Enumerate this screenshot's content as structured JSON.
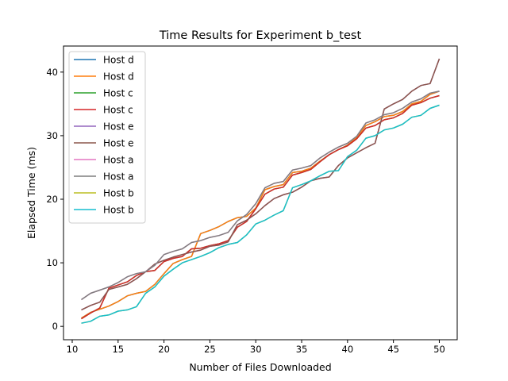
{
  "chart_data": {
    "type": "line",
    "title": "Time Results for Experiment b_test",
    "xlabel": "Number of Files Downloaded",
    "ylabel": "Elapsed Time (ms)",
    "xlim": [
      9.05,
      51.95
    ],
    "ylim": [
      -2.1,
      44.1
    ],
    "xticks": [
      10,
      15,
      20,
      25,
      30,
      35,
      40,
      45,
      50
    ],
    "yticks": [
      0,
      10,
      20,
      30,
      40
    ],
    "grid": false,
    "legend_position": "upper-left",
    "x": [
      11,
      12,
      13,
      14,
      15,
      16,
      17,
      18,
      19,
      20,
      21,
      22,
      23,
      24,
      25,
      26,
      27,
      28,
      29,
      30,
      31,
      32,
      33,
      34,
      35,
      36,
      37,
      38,
      39,
      40,
      41,
      42,
      43,
      44,
      45,
      46,
      47,
      48,
      49,
      50
    ],
    "series": [
      {
        "name": "Host d",
        "color": "#1f77b4",
        "values": [
          1.3,
          2.2,
          2.7,
          3.2,
          3.9,
          4.8,
          5.2,
          5.5,
          6.6,
          8.3,
          9.9,
          10.5,
          11.0,
          14.6,
          15.1,
          15.7,
          16.5,
          17.1,
          17.3,
          18.6,
          21.5,
          22.0,
          22.3,
          24.2,
          24.4,
          24.9,
          26.0,
          27.0,
          27.8,
          28.5,
          29.7,
          31.6,
          32.2,
          33.0,
          33.2,
          33.8,
          35.0,
          35.4,
          36.5,
          37.0
        ]
      },
      {
        "name": "Host d",
        "color": "#ff7f0e",
        "values": [
          1.3,
          2.2,
          2.7,
          3.2,
          3.9,
          4.8,
          5.2,
          5.5,
          6.6,
          8.3,
          9.9,
          10.5,
          11.0,
          14.6,
          15.1,
          15.7,
          16.5,
          17.1,
          17.3,
          18.6,
          21.5,
          22.0,
          22.3,
          24.2,
          24.4,
          24.9,
          26.0,
          27.0,
          27.8,
          28.5,
          29.7,
          31.6,
          32.2,
          33.0,
          33.2,
          33.8,
          35.0,
          35.4,
          36.5,
          37.0
        ]
      },
      {
        "name": "Host c",
        "color": "#2ca02c",
        "values": [
          1.2,
          2.1,
          2.9,
          6.0,
          6.5,
          7.0,
          8.0,
          8.6,
          8.8,
          10.2,
          10.7,
          11.0,
          12.2,
          12.3,
          12.7,
          13.0,
          13.5,
          15.6,
          16.5,
          18.5,
          20.8,
          21.6,
          21.9,
          23.8,
          24.2,
          24.7,
          25.9,
          27.0,
          27.8,
          28.4,
          29.5,
          31.2,
          31.6,
          32.5,
          32.8,
          33.5,
          34.8,
          35.2,
          35.9,
          36.3
        ]
      },
      {
        "name": "Host c",
        "color": "#d62728",
        "values": [
          1.2,
          2.1,
          2.9,
          6.0,
          6.5,
          7.0,
          8.0,
          8.6,
          8.8,
          10.2,
          10.7,
          11.0,
          12.2,
          12.3,
          12.7,
          13.0,
          13.5,
          15.6,
          16.5,
          18.5,
          20.8,
          21.6,
          21.9,
          23.8,
          24.2,
          24.7,
          25.9,
          27.0,
          27.8,
          28.4,
          29.5,
          31.2,
          31.6,
          32.5,
          32.8,
          33.5,
          34.8,
          35.2,
          35.9,
          36.3
        ]
      },
      {
        "name": "Host e",
        "color": "#9467bd",
        "values": [
          2.6,
          3.3,
          3.8,
          5.8,
          6.2,
          6.6,
          7.5,
          8.6,
          9.8,
          10.4,
          10.9,
          11.3,
          11.7,
          12.0,
          12.6,
          12.8,
          13.3,
          16.0,
          16.7,
          17.7,
          19.0,
          20.1,
          20.7,
          21.1,
          21.9,
          22.9,
          23.3,
          23.5,
          25.3,
          26.5,
          27.3,
          28.1,
          28.8,
          34.2,
          35.0,
          35.7,
          37.0,
          37.9,
          38.2,
          42.1
        ]
      },
      {
        "name": "Host e",
        "color": "#8c564b",
        "values": [
          2.6,
          3.3,
          3.8,
          5.8,
          6.2,
          6.6,
          7.5,
          8.6,
          9.8,
          10.4,
          10.9,
          11.3,
          11.7,
          12.0,
          12.6,
          12.8,
          13.3,
          16.0,
          16.7,
          17.7,
          19.0,
          20.1,
          20.7,
          21.1,
          21.9,
          22.9,
          23.3,
          23.5,
          25.3,
          26.5,
          27.3,
          28.1,
          28.8,
          34.2,
          35.0,
          35.7,
          37.0,
          37.9,
          38.2,
          42.1
        ]
      },
      {
        "name": "Host a",
        "color": "#e377c2",
        "values": [
          4.2,
          5.2,
          5.7,
          6.2,
          6.9,
          7.8,
          8.3,
          8.6,
          9.6,
          11.3,
          11.8,
          12.2,
          13.2,
          13.5,
          14.0,
          14.3,
          14.8,
          16.6,
          17.6,
          19.3,
          21.8,
          22.5,
          22.8,
          24.6,
          24.9,
          25.3,
          26.5,
          27.4,
          28.2,
          28.8,
          29.9,
          32.0,
          32.5,
          33.3,
          33.6,
          34.3,
          35.3,
          35.8,
          36.7,
          37.0
        ]
      },
      {
        "name": "Host a",
        "color": "#7f7f7f",
        "values": [
          4.2,
          5.2,
          5.7,
          6.2,
          6.9,
          7.8,
          8.3,
          8.6,
          9.6,
          11.3,
          11.8,
          12.2,
          13.2,
          13.5,
          14.0,
          14.3,
          14.8,
          16.6,
          17.6,
          19.3,
          21.8,
          22.5,
          22.8,
          24.6,
          24.9,
          25.3,
          26.5,
          27.4,
          28.2,
          28.8,
          29.9,
          32.0,
          32.5,
          33.3,
          33.6,
          34.3,
          35.3,
          35.8,
          36.7,
          37.0
        ]
      },
      {
        "name": "Host b",
        "color": "#bcbd22",
        "values": [
          0.5,
          0.8,
          1.6,
          1.8,
          2.4,
          2.6,
          3.1,
          5.2,
          6.2,
          7.9,
          9.0,
          10.0,
          10.5,
          11.0,
          11.6,
          12.4,
          12.9,
          13.2,
          14.4,
          16.1,
          16.7,
          17.5,
          18.2,
          21.8,
          22.3,
          22.9,
          23.7,
          24.4,
          24.5,
          26.7,
          27.7,
          29.6,
          30.0,
          30.9,
          31.2,
          31.8,
          32.9,
          33.2,
          34.3,
          34.8
        ]
      },
      {
        "name": "Host b",
        "color": "#17becf",
        "values": [
          0.5,
          0.8,
          1.6,
          1.8,
          2.4,
          2.6,
          3.1,
          5.2,
          6.2,
          7.9,
          9.0,
          10.0,
          10.5,
          11.0,
          11.6,
          12.4,
          12.9,
          13.2,
          14.4,
          16.1,
          16.7,
          17.5,
          18.2,
          21.8,
          22.3,
          22.9,
          23.7,
          24.4,
          24.5,
          26.7,
          27.7,
          29.6,
          30.0,
          30.9,
          31.2,
          31.8,
          32.9,
          33.2,
          34.3,
          34.8
        ]
      }
    ]
  }
}
